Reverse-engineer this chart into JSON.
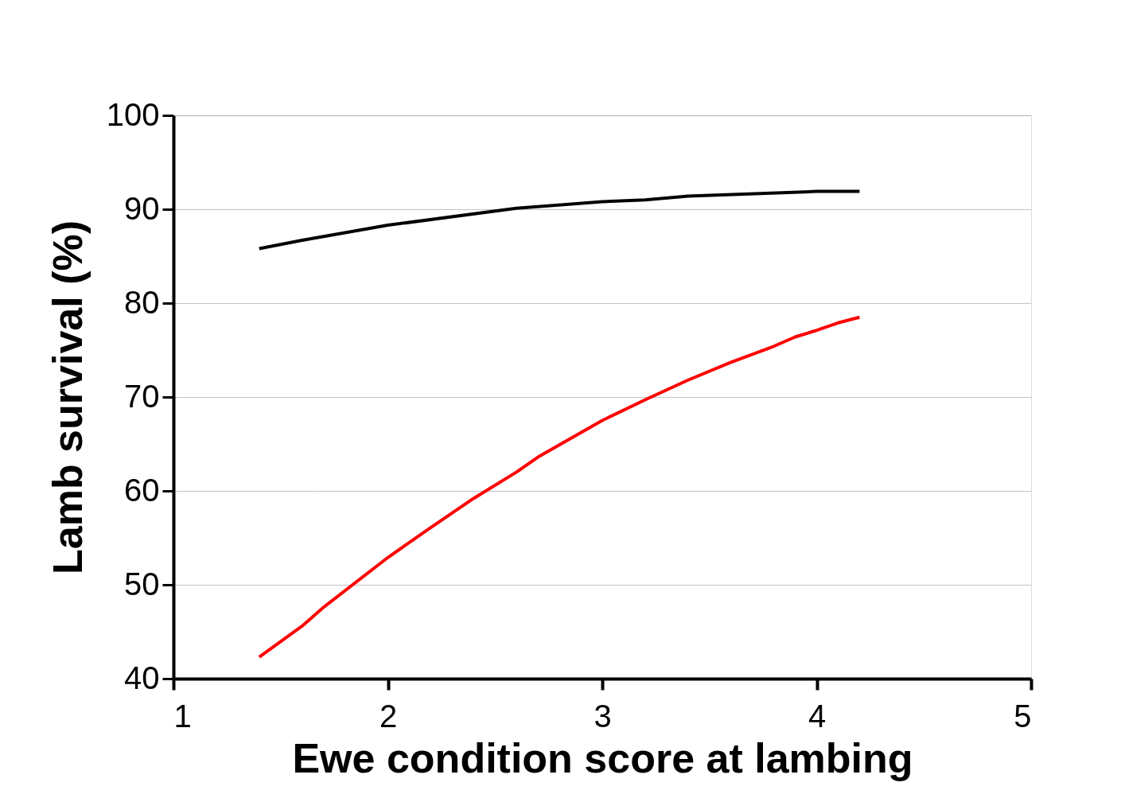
{
  "chart_data": {
    "type": "line",
    "xlabel": "Ewe condition score at lambing",
    "ylabel": "Lamb survival (%)",
    "xlim": [
      1,
      5
    ],
    "xticks": [
      1,
      2,
      3,
      4,
      5
    ],
    "ylim": [
      40,
      100
    ],
    "yticks": [
      40,
      50,
      60,
      70,
      80,
      90,
      100
    ],
    "grid": "y",
    "legend": false,
    "marker": "none",
    "line_style": "solid",
    "series": [
      {
        "color": "#000000",
        "x": [
          1.4,
          1.6,
          2.0,
          2.6,
          3.0,
          3.2,
          3.4,
          4.0,
          4.2
        ],
        "values": [
          85.8,
          86.7,
          88.3,
          90.1,
          90.8,
          91.0,
          91.4,
          91.9,
          91.9
        ]
      },
      {
        "color": "#ff0000",
        "x": [
          1.4,
          1.6,
          1.7,
          2.0,
          2.2,
          2.4,
          2.6,
          2.7,
          3.0,
          3.2,
          3.4,
          3.6,
          3.8,
          3.9,
          4.0,
          4.1,
          4.2
        ],
        "values": [
          42.3,
          45.6,
          47.6,
          52.9,
          56.1,
          59.2,
          62.0,
          63.6,
          67.5,
          69.7,
          71.8,
          73.7,
          75.4,
          76.4,
          77.1,
          77.9,
          78.5
        ]
      }
    ]
  }
}
